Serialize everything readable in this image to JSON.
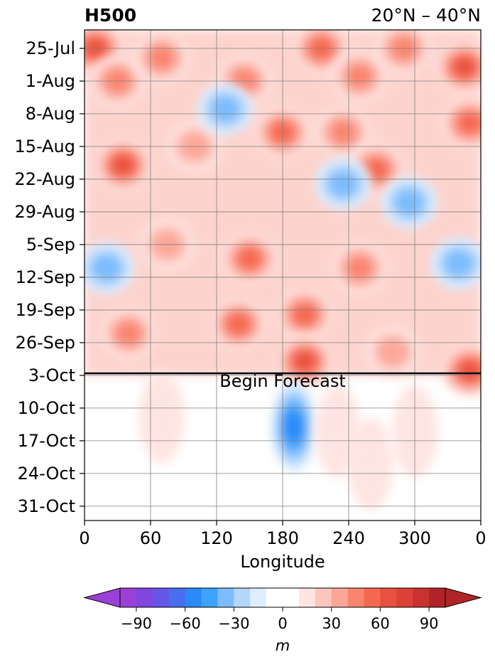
{
  "chart_data": {
    "type": "heatmap",
    "title": "H500",
    "subtitle": "20°N – 40°N",
    "xlabel": "Longitude",
    "ylabel": "",
    "x_ticks": [
      "0",
      "60",
      "120",
      "180",
      "240",
      "300",
      "0"
    ],
    "y_ticks": [
      "25-Jul",
      "1-Aug",
      "8-Aug",
      "15-Aug",
      "22-Aug",
      "29-Aug",
      "5-Sep",
      "12-Sep",
      "19-Sep",
      "26-Sep",
      "3-Oct",
      "10-Oct",
      "17-Oct",
      "24-Oct",
      "31-Oct"
    ],
    "xlim": [
      0,
      360
    ],
    "ylim_dates": [
      "~21-Jul",
      "~5-Nov"
    ],
    "grid": true,
    "forecast_line": {
      "date": "3-Oct",
      "label": "Begin Forecast"
    },
    "colorbar": {
      "unit": "m",
      "ticks": [
        "−90",
        "−60",
        "−30",
        "0",
        "30",
        "60",
        "90"
      ],
      "levels": [
        -100,
        -90,
        -80,
        -70,
        -60,
        -50,
        -40,
        -30,
        -20,
        -10,
        0,
        10,
        20,
        30,
        40,
        50,
        60,
        70,
        80,
        90,
        100
      ],
      "colors": [
        "#9a3fd8",
        "#8046e0",
        "#6655e6",
        "#4a6ef0",
        "#2b8af7",
        "#3da2fb",
        "#7cbcfc",
        "#b3d6fd",
        "#dfeefe",
        "#ffffff",
        "#ffffff",
        "#fee5e2",
        "#fdc6bd",
        "#fca698",
        "#f98570",
        "#f5684f",
        "#e8513f",
        "#dc4037",
        "#c93230",
        "#b02427"
      ],
      "extend": "both"
    },
    "anomaly_blobs": [
      {
        "lon": 10,
        "date_offset_days": 3,
        "value": 60
      },
      {
        "lon": 30,
        "date_offset_days": 10,
        "value": 40
      },
      {
        "lon": 70,
        "date_offset_days": 5,
        "value": 40
      },
      {
        "lon": 145,
        "date_offset_days": 10,
        "value": 40
      },
      {
        "lon": 215,
        "date_offset_days": 3,
        "value": 50
      },
      {
        "lon": 250,
        "date_offset_days": 9,
        "value": 40
      },
      {
        "lon": 290,
        "date_offset_days": 3,
        "value": 40
      },
      {
        "lon": 345,
        "date_offset_days": 7,
        "value": 60
      },
      {
        "lon": 35,
        "date_offset_days": 28,
        "value": 60
      },
      {
        "lon": 100,
        "date_offset_days": 24,
        "value": 30
      },
      {
        "lon": 128,
        "date_offset_days": 16,
        "value": -30
      },
      {
        "lon": 180,
        "date_offset_days": 21,
        "value": 50
      },
      {
        "lon": 235,
        "date_offset_days": 21,
        "value": 40
      },
      {
        "lon": 265,
        "date_offset_days": 29,
        "value": 50
      },
      {
        "lon": 350,
        "date_offset_days": 19,
        "value": 50
      },
      {
        "lon": 75,
        "date_offset_days": 45,
        "value": 30
      },
      {
        "lon": 150,
        "date_offset_days": 48,
        "value": 50
      },
      {
        "lon": 250,
        "date_offset_days": 50,
        "value": 40
      },
      {
        "lon": 20,
        "date_offset_days": 50,
        "value": -30
      },
      {
        "lon": 340,
        "date_offset_days": 49,
        "value": -30
      },
      {
        "lon": 295,
        "date_offset_days": 36,
        "value": -30
      },
      {
        "lon": 235,
        "date_offset_days": 32,
        "value": -30
      },
      {
        "lon": 140,
        "date_offset_days": 62,
        "value": 50
      },
      {
        "lon": 200,
        "date_offset_days": 60,
        "value": 50
      },
      {
        "lon": 40,
        "date_offset_days": 64,
        "value": 40
      },
      {
        "lon": 200,
        "date_offset_days": 70,
        "value": 60
      },
      {
        "lon": 350,
        "date_offset_days": 72,
        "value": 60
      },
      {
        "lon": 280,
        "date_offset_days": 68,
        "value": 30
      },
      {
        "lon": 190,
        "date_offset_days": 84,
        "value": -50
      },
      {
        "lon": 70,
        "date_offset_days": 82,
        "value": 10
      },
      {
        "lon": 300,
        "date_offset_days": 85,
        "value": 10
      },
      {
        "lon": 230,
        "date_offset_days": 85,
        "value": 10
      },
      {
        "lon": 260,
        "date_offset_days": 92,
        "value": 10
      }
    ]
  }
}
